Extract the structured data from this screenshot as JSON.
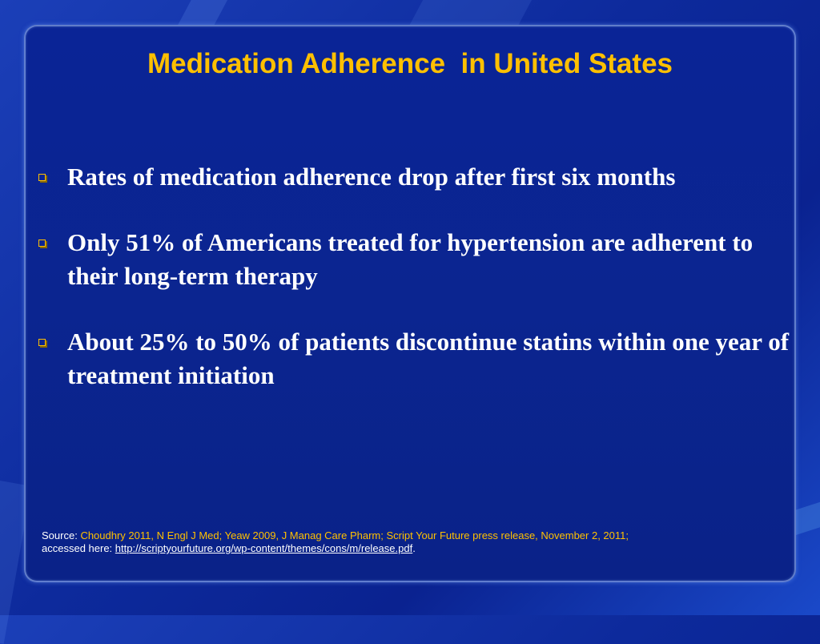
{
  "slide": {
    "title": "Medication Adherence  in United States",
    "bullets": [
      "Rates of medication adherence drop after first six months",
      "Only 51% of Americans treated for hypertension are adherent to their long-term therapy",
      "About 25% to 50% of patients discontinue statins within one year of treatment initiation"
    ],
    "bullet_icon": "hollow-square-bullet-icon",
    "source": {
      "label": "Source:",
      "references": "Choudhry 2011, N Engl J Med; Yeaw 2009, J Manag Care Pharm; Script Your Future press release, November 2, 2011;",
      "accessed_prefix": "accessed here:",
      "link": "http://scriptyourfuture.org/wp-content/themes/cons/m/release.pdf",
      "trailing": "."
    }
  },
  "colors": {
    "title": "#ffc000",
    "text": "#ffffff",
    "background": "#0b2590",
    "bullet": "#ffc000"
  }
}
